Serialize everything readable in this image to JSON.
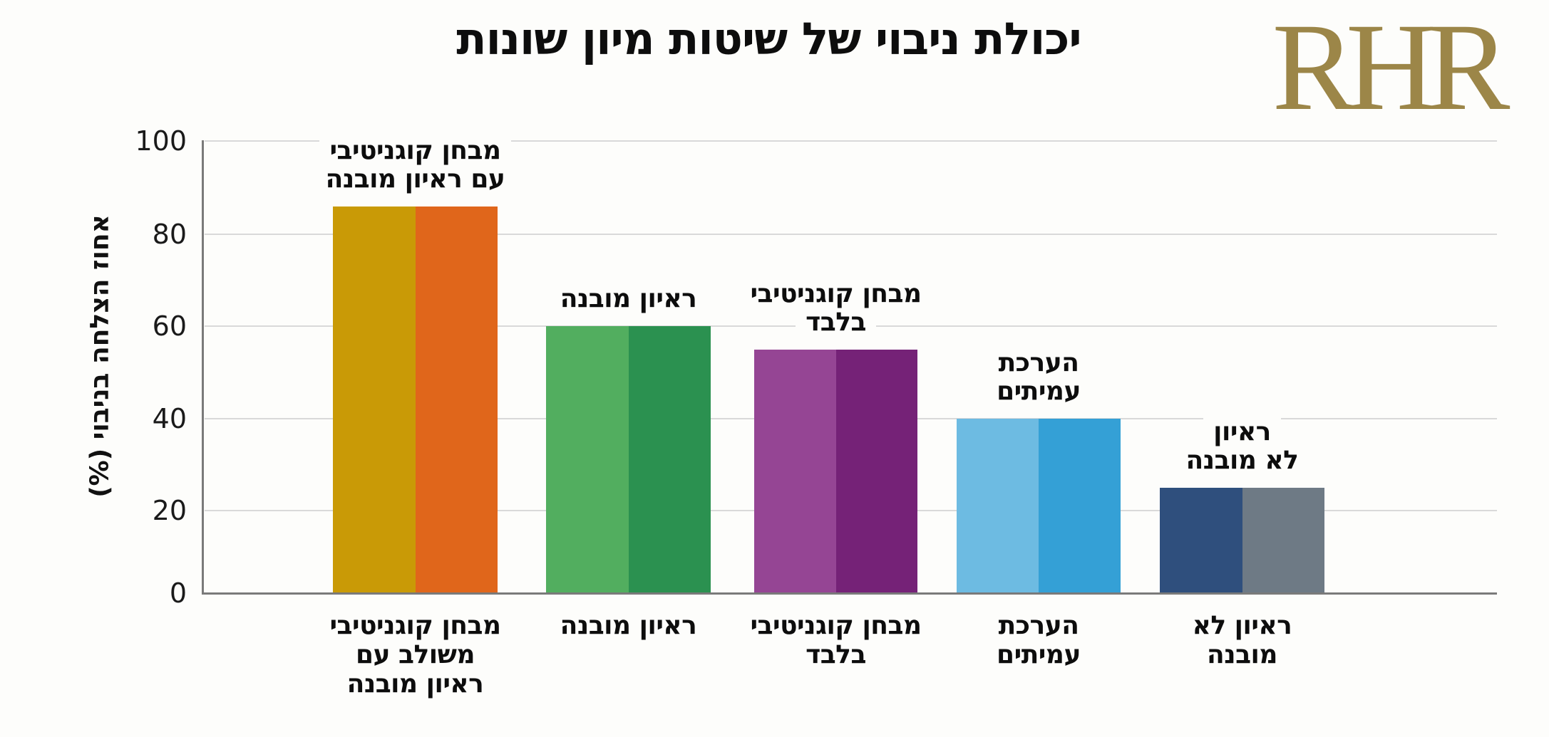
{
  "header": {
    "title": "יכולת ניבוי של שיטות מיון שונות",
    "logo_text": "RHR",
    "logo_color": "#9c8648"
  },
  "axis": {
    "ylabel": "אחוז הצלחה בניבוי (%)",
    "yticks": [
      "0",
      "20",
      "40",
      "60",
      "80",
      "100"
    ]
  },
  "bars": [
    {
      "top_label": [
        "מבחן קוגניטיבי",
        "עם ראיון מובנה"
      ],
      "category_label": [
        "מבחן קוגניטיבי",
        "משולב עם",
        "ראיון מובנה"
      ],
      "value": 86,
      "colors": [
        "#c99a06",
        "#e0661b"
      ]
    },
    {
      "top_label": [
        "ראיון מובנה"
      ],
      "category_label": [
        "ראיון מובנה"
      ],
      "value": 60,
      "colors": [
        "#52ae5f",
        "#2b9150"
      ]
    },
    {
      "top_label": [
        "מבחן קוגניטיבי",
        "בלבד"
      ],
      "category_label": [
        "מבחן קוגניטיבי",
        "בלבד"
      ],
      "value": 55,
      "colors": [
        "#954594",
        "#752277"
      ]
    },
    {
      "top_label": [
        "הערכת",
        "עמיתים"
      ],
      "category_label": [
        "הערכת",
        "עמיתים"
      ],
      "value": 40,
      "colors": [
        "#6dbbe2",
        "#34a0d6"
      ]
    },
    {
      "top_label": [
        "ראיון",
        "לא מובנה"
      ],
      "category_label": [
        "ראיון לא",
        "מובנה"
      ],
      "value": 25,
      "colors": [
        "#2f4f7d",
        "#6e7a85"
      ]
    }
  ],
  "chart_data": {
    "type": "bar",
    "title": "יכולת ניבוי של שיטות מיון שונות",
    "categories": [
      "מבחן קוגניטיבי משולב עם ראיון מובנה",
      "ראיון מובנה",
      "מבחן קוגניטיבי בלבד",
      "הערכת עמיתים",
      "ראיון לא מובנה"
    ],
    "values": [
      86,
      60,
      55,
      40,
      25
    ],
    "xlabel": "",
    "ylabel": "אחוז הצלחה בניבוי (%)",
    "ylim": [
      0,
      100
    ],
    "yticks": [
      0,
      20,
      40,
      60,
      80,
      100
    ],
    "grid": true,
    "legend": null,
    "bar_colors": [
      [
        "#c99a06",
        "#e0661b"
      ],
      [
        "#52ae5f",
        "#2b9150"
      ],
      [
        "#954594",
        "#752277"
      ],
      [
        "#6dbbe2",
        "#34a0d6"
      ],
      [
        "#2f4f7d",
        "#6e7a85"
      ]
    ],
    "annotations": [
      "מבחן קוגניטיבי עם ראיון מובנה",
      "ראיון מובנה",
      "מבחן קוגניטיבי בלבד",
      "הערכת עמיתים",
      "ראיון לא מובנה"
    ]
  }
}
